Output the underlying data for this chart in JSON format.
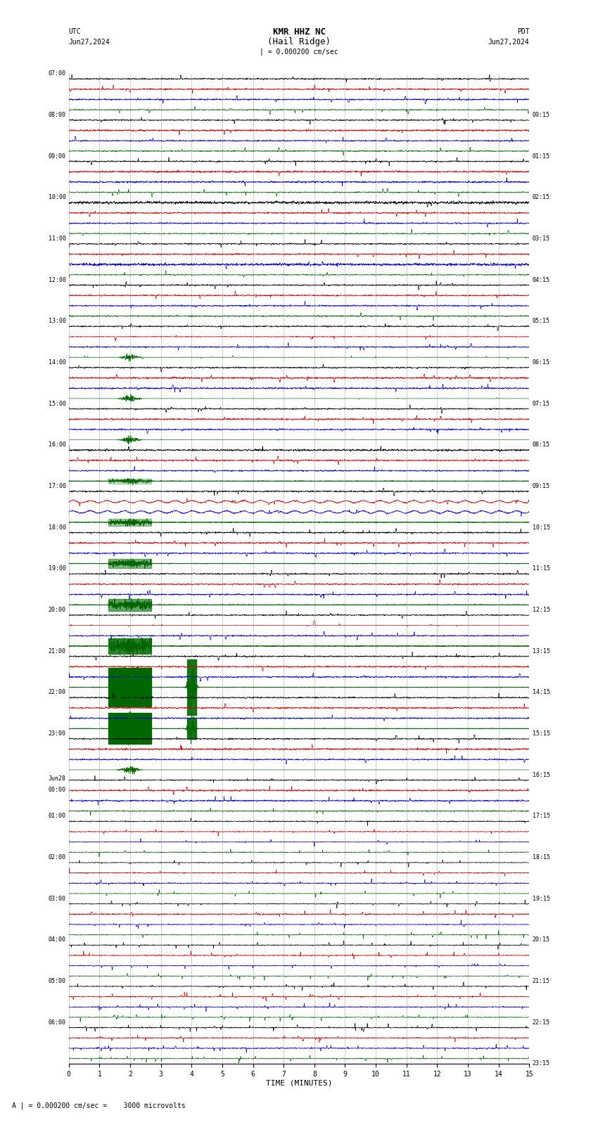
{
  "title_line1": "KMR HHZ NC",
  "title_line2": "(Hail Ridge)",
  "scale_label": "| = 0.000200 cm/sec",
  "footer_label": "A | = 0.000200 cm/sec =    3000 microvolts",
  "xlabel": "TIME (MINUTES)",
  "xmin": 0,
  "xmax": 15,
  "xticks": [
    0,
    1,
    2,
    3,
    4,
    5,
    6,
    7,
    8,
    9,
    10,
    11,
    12,
    13,
    14,
    15
  ],
  "background_color": "#ffffff",
  "trace_colors": [
    "#000000",
    "#cc0000",
    "#0000cc",
    "#006600"
  ],
  "left_times": [
    "07:00",
    "08:00",
    "09:00",
    "10:00",
    "11:00",
    "12:00",
    "13:00",
    "14:00",
    "15:00",
    "16:00",
    "17:00",
    "18:00",
    "19:00",
    "20:00",
    "21:00",
    "22:00",
    "23:00",
    "Jun28\n00:00",
    "01:00",
    "02:00",
    "03:00",
    "04:00",
    "05:00",
    "06:00"
  ],
  "right_times": [
    "00:15",
    "01:15",
    "02:15",
    "03:15",
    "04:15",
    "05:15",
    "06:15",
    "07:15",
    "08:15",
    "09:15",
    "10:15",
    "11:15",
    "12:15",
    "13:15",
    "14:15",
    "15:15",
    "16:15",
    "17:15",
    "18:15",
    "19:15",
    "20:15",
    "21:15",
    "22:15",
    "23:15"
  ],
  "num_hour_rows": 24,
  "traces_per_row": 4,
  "fig_width": 8.5,
  "fig_height": 16.13,
  "dpi": 100
}
